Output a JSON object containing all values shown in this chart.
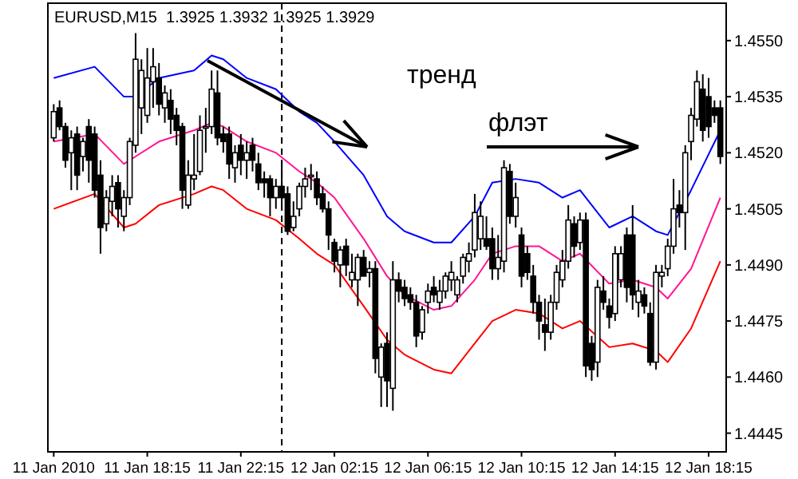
{
  "chart_data": {
    "type": "candlestick",
    "title": "EURUSD,M15  1.3925 1.3932 1.3925 1.3929",
    "annotations": [
      "тренд",
      "флэт"
    ],
    "x": [
      "2010-01-11T14:15",
      "2010-01-11T14:30",
      "2010-01-11T14:45",
      "2010-01-11T15:00",
      "2010-01-11T15:15",
      "2010-01-11T15:30",
      "2010-01-11T15:45",
      "2010-01-11T16:00",
      "2010-01-11T16:15",
      "2010-01-11T16:30",
      "2010-01-11T16:45",
      "2010-01-11T17:00",
      "2010-01-11T17:15",
      "2010-01-11T17:30",
      "2010-01-11T17:45",
      "2010-01-11T18:00",
      "2010-01-11T18:15",
      "2010-01-11T18:30",
      "2010-01-11T18:45",
      "2010-01-11T19:00",
      "2010-01-11T19:15",
      "2010-01-11T19:30",
      "2010-01-11T19:45",
      "2010-01-11T20:00",
      "2010-01-11T20:15",
      "2010-01-11T20:30",
      "2010-01-11T20:45",
      "2010-01-11T21:00",
      "2010-01-11T21:15",
      "2010-01-11T21:30",
      "2010-01-11T21:45",
      "2010-01-11T22:00",
      "2010-01-11T22:15",
      "2010-01-11T22:30",
      "2010-01-11T22:45",
      "2010-01-11T23:00",
      "2010-01-11T23:15",
      "2010-01-11T23:30",
      "2010-01-11T23:45",
      "2010-01-12T00:00",
      "2010-01-12T00:15",
      "2010-01-12T00:30",
      "2010-01-12T00:45",
      "2010-01-12T01:00",
      "2010-01-12T01:15",
      "2010-01-12T01:30",
      "2010-01-12T01:45",
      "2010-01-12T02:00",
      "2010-01-12T02:15",
      "2010-01-12T02:30",
      "2010-01-12T02:45",
      "2010-01-12T03:00",
      "2010-01-12T03:15",
      "2010-01-12T03:30",
      "2010-01-12T03:45",
      "2010-01-12T04:00",
      "2010-01-12T04:15",
      "2010-01-12T04:30",
      "2010-01-12T04:45",
      "2010-01-12T05:00",
      "2010-01-12T05:15",
      "2010-01-12T05:30",
      "2010-01-12T05:45",
      "2010-01-12T06:00",
      "2010-01-12T06:15",
      "2010-01-12T06:30",
      "2010-01-12T06:45",
      "2010-01-12T07:00",
      "2010-01-12T07:15",
      "2010-01-12T07:30",
      "2010-01-12T07:45",
      "2010-01-12T08:00",
      "2010-01-12T08:15",
      "2010-01-12T08:30",
      "2010-01-12T08:45",
      "2010-01-12T09:00",
      "2010-01-12T09:15",
      "2010-01-12T09:30",
      "2010-01-12T09:45",
      "2010-01-12T10:00",
      "2010-01-12T10:15",
      "2010-01-12T10:30",
      "2010-01-12T10:45",
      "2010-01-12T11:00",
      "2010-01-12T11:15",
      "2010-01-12T11:30",
      "2010-01-12T11:45",
      "2010-01-12T12:00",
      "2010-01-12T12:15",
      "2010-01-12T12:30",
      "2010-01-12T12:45",
      "2010-01-12T13:00",
      "2010-01-12T13:15",
      "2010-01-12T13:30",
      "2010-01-12T13:45",
      "2010-01-12T14:00",
      "2010-01-12T14:15",
      "2010-01-12T14:30",
      "2010-01-12T14:45",
      "2010-01-12T15:00",
      "2010-01-12T15:15",
      "2010-01-12T15:30",
      "2010-01-12T15:45",
      "2010-01-12T16:00",
      "2010-01-12T16:15",
      "2010-01-12T16:30",
      "2010-01-12T16:45",
      "2010-01-12T17:00",
      "2010-01-12T17:15",
      "2010-01-12T17:30",
      "2010-01-12T17:45",
      "2010-01-12T18:00",
      "2010-01-12T18:15",
      "2010-01-12T18:30",
      "2010-01-12T18:45"
    ],
    "ohlc": [
      [
        1.4524,
        1.4533,
        1.4523,
        1.4531
      ],
      [
        1.4532,
        1.4534,
        1.4526,
        1.4527
      ],
      [
        1.4527,
        1.4528,
        1.4516,
        1.4518
      ],
      [
        1.452,
        1.4526,
        1.451,
        1.4524
      ],
      [
        1.4525,
        1.4527,
        1.451,
        1.4514
      ],
      [
        1.4519,
        1.4524,
        1.4515,
        1.4523
      ],
      [
        1.4527,
        1.4529,
        1.4512,
        1.4518
      ],
      [
        1.4525,
        1.4527,
        1.4508,
        1.451
      ],
      [
        1.4514,
        1.4518,
        1.4493,
        1.45
      ],
      [
        1.4501,
        1.451,
        1.4499,
        1.4508
      ],
      [
        1.4507,
        1.4514,
        1.4503,
        1.4511
      ],
      [
        1.4512,
        1.4514,
        1.45,
        1.4505
      ],
      [
        1.4503,
        1.451,
        1.4499,
        1.4508
      ],
      [
        1.4508,
        1.4524,
        1.4506,
        1.4523
      ],
      [
        1.4522,
        1.4552,
        1.452,
        1.4545
      ],
      [
        1.4532,
        1.4545,
        1.4525,
        1.4542
      ],
      [
        1.453,
        1.4548,
        1.4528,
        1.454
      ],
      [
        1.4539,
        1.4548,
        1.4532,
        1.4543
      ],
      [
        1.454,
        1.4544,
        1.453,
        1.4533
      ],
      [
        1.4532,
        1.4538,
        1.4528,
        1.4536
      ],
      [
        1.4534,
        1.4537,
        1.4525,
        1.4529
      ],
      [
        1.453,
        1.4532,
        1.4522,
        1.4526
      ],
      [
        1.4527,
        1.4528,
        1.4505,
        1.451
      ],
      [
        1.4506,
        1.4518,
        1.4505,
        1.4514
      ],
      [
        1.4513,
        1.4525,
        1.451,
        1.4514
      ],
      [
        1.4515,
        1.453,
        1.4514,
        1.4526
      ],
      [
        1.4527,
        1.4532,
        1.452,
        1.4527
      ],
      [
        1.4527,
        1.4542,
        1.4525,
        1.4537
      ],
      [
        1.4536,
        1.4542,
        1.4522,
        1.4524
      ],
      [
        1.4525,
        1.4527,
        1.452,
        1.4523
      ],
      [
        1.4525,
        1.4527,
        1.4513,
        1.4517
      ],
      [
        1.4516,
        1.4522,
        1.4512,
        1.452
      ],
      [
        1.4522,
        1.4525,
        1.4514,
        1.4518
      ],
      [
        1.4518,
        1.4523,
        1.4513,
        1.452
      ],
      [
        1.4522,
        1.4524,
        1.4515,
        1.4518
      ],
      [
        1.4517,
        1.452,
        1.451,
        1.4512
      ],
      [
        1.4513,
        1.4515,
        1.4508,
        1.4512
      ],
      [
        1.4513,
        1.4514,
        1.4503,
        1.4508
      ],
      [
        1.4508,
        1.4513,
        1.4505,
        1.4511
      ],
      [
        1.4511,
        1.4518,
        1.4505,
        1.4508
      ],
      [
        1.4509,
        1.4511,
        1.4498,
        1.4499
      ],
      [
        1.45,
        1.4507,
        1.4499,
        1.4503
      ],
      [
        1.4505,
        1.4512,
        1.4503,
        1.4511
      ],
      [
        1.4511,
        1.4516,
        1.4508,
        1.4513
      ],
      [
        1.4514,
        1.4517,
        1.451,
        1.4514
      ],
      [
        1.4513,
        1.4515,
        1.4506,
        1.4508
      ],
      [
        1.4509,
        1.4511,
        1.4504,
        1.4505
      ],
      [
        1.4505,
        1.4507,
        1.4494,
        1.4498
      ],
      [
        1.4496,
        1.4497,
        1.4488,
        1.4491
      ],
      [
        1.449,
        1.4495,
        1.4484,
        1.4494
      ],
      [
        1.4495,
        1.4497,
        1.4487,
        1.449
      ],
      [
        1.4486,
        1.4493,
        1.4484,
        1.4488
      ],
      [
        1.4486,
        1.4493,
        1.4479,
        1.4492
      ],
      [
        1.4492,
        1.4494,
        1.4487,
        1.4487
      ],
      [
        1.4488,
        1.4491,
        1.4484,
        1.4489
      ],
      [
        1.4489,
        1.4491,
        1.4461,
        1.4465
      ],
      [
        1.446,
        1.4469,
        1.4452,
        1.4468
      ],
      [
        1.4469,
        1.4472,
        1.4452,
        1.4459
      ],
      [
        1.4457,
        1.4491,
        1.4451,
        1.4486
      ],
      [
        1.4486,
        1.4488,
        1.448,
        1.4483
      ],
      [
        1.4484,
        1.4486,
        1.4479,
        1.4481
      ],
      [
        1.4482,
        1.4484,
        1.4478,
        1.448
      ],
      [
        1.448,
        1.4482,
        1.4468,
        1.4471
      ],
      [
        1.4472,
        1.4479,
        1.447,
        1.4478
      ],
      [
        1.448,
        1.4485,
        1.4477,
        1.4483
      ],
      [
        1.4484,
        1.4487,
        1.448,
        1.4482
      ],
      [
        1.448,
        1.4486,
        1.4478,
        1.4483
      ],
      [
        1.4483,
        1.4488,
        1.4481,
        1.4487
      ],
      [
        1.4486,
        1.4491,
        1.4483,
        1.4488
      ],
      [
        1.4482,
        1.4487,
        1.448,
        1.4486
      ],
      [
        1.4487,
        1.4493,
        1.4485,
        1.4492
      ],
      [
        1.4491,
        1.4496,
        1.4488,
        1.4493
      ],
      [
        1.4494,
        1.4509,
        1.4492,
        1.4504
      ],
      [
        1.4497,
        1.4507,
        1.4494,
        1.4503
      ],
      [
        1.4497,
        1.4503,
        1.4494,
        1.4495
      ],
      [
        1.4497,
        1.45,
        1.4486,
        1.4489
      ],
      [
        1.4489,
        1.4498,
        1.4486,
        1.4492
      ],
      [
        1.4491,
        1.4518,
        1.4488,
        1.4516
      ],
      [
        1.4515,
        1.4517,
        1.4501,
        1.4503
      ],
      [
        1.4503,
        1.4512,
        1.45,
        1.4508
      ],
      [
        1.4498,
        1.45,
        1.4484,
        1.4487
      ],
      [
        1.4493,
        1.4495,
        1.4486,
        1.4488
      ],
      [
        1.4487,
        1.449,
        1.4477,
        1.448
      ],
      [
        1.448,
        1.4482,
        1.447,
        1.4475
      ],
      [
        1.4474,
        1.4481,
        1.4467,
        1.4472
      ],
      [
        1.4472,
        1.4482,
        1.447,
        1.448
      ],
      [
        1.448,
        1.449,
        1.4478,
        1.4488
      ],
      [
        1.4486,
        1.4494,
        1.4484,
        1.4491
      ],
      [
        1.4491,
        1.4506,
        1.4489,
        1.4502
      ],
      [
        1.4501,
        1.4503,
        1.4492,
        1.4495
      ],
      [
        1.4496,
        1.4504,
        1.4494,
        1.4502
      ],
      [
        1.4502,
        1.4504,
        1.446,
        1.4463
      ],
      [
        1.4469,
        1.4471,
        1.4459,
        1.4462
      ],
      [
        1.4464,
        1.4486,
        1.446,
        1.4484
      ],
      [
        1.4483,
        1.4487,
        1.4478,
        1.448
      ],
      [
        1.4479,
        1.4481,
        1.4473,
        1.4476
      ],
      [
        1.4477,
        1.4495,
        1.4475,
        1.4493
      ],
      [
        1.4486,
        1.4495,
        1.4484,
        1.4493
      ],
      [
        1.4498,
        1.45,
        1.448,
        1.4484
      ],
      [
        1.4498,
        1.4506,
        1.4478,
        1.4482
      ],
      [
        1.448,
        1.4486,
        1.4476,
        1.4483
      ],
      [
        1.4482,
        1.4484,
        1.4477,
        1.4479
      ],
      [
        1.4477,
        1.448,
        1.4463,
        1.4464
      ],
      [
        1.4464,
        1.449,
        1.4462,
        1.4488
      ],
      [
        1.4487,
        1.449,
        1.4484,
        1.4488
      ],
      [
        1.4489,
        1.4497,
        1.4487,
        1.4495
      ],
      [
        1.4495,
        1.4513,
        1.4493,
        1.4505
      ],
      [
        1.4506,
        1.451,
        1.45,
        1.4504
      ],
      [
        1.4504,
        1.4522,
        1.4494,
        1.452
      ],
      [
        1.4523,
        1.4532,
        1.4518,
        1.453
      ],
      [
        1.4529,
        1.4542,
        1.4527,
        1.4539
      ],
      [
        1.4537,
        1.4541,
        1.4523,
        1.4526
      ],
      [
        1.4535,
        1.454,
        1.4524,
        1.4527
      ],
      [
        1.4532,
        1.4534,
        1.4528,
        1.453
      ],
      [
        1.4532,
        1.4534,
        1.4517,
        1.4519
      ]
    ],
    "series": [
      {
        "type": "line",
        "color": "#0000ff",
        "x": [
          "2010-01-11T14:15",
          "2010-01-11T16:00",
          "2010-01-11T17:15",
          "2010-01-11T17:45",
          "2010-01-11T18:45",
          "2010-01-11T20:15",
          "2010-01-11T21:00",
          "2010-01-11T21:30",
          "2010-01-11T22:30",
          "2010-01-11T23:45",
          "2010-01-12T00:45",
          "2010-01-12T01:30",
          "2010-01-12T02:15",
          "2010-01-12T03:30",
          "2010-01-12T04:30",
          "2010-01-12T05:15",
          "2010-01-12T06:30",
          "2010-01-12T07:15",
          "2010-01-12T08:15",
          "2010-01-12T09:00",
          "2010-01-12T10:00",
          "2010-01-12T11:00",
          "2010-01-12T12:00",
          "2010-01-12T12:45",
          "2010-01-12T14:00",
          "2010-01-12T15:00",
          "2010-01-12T16:00",
          "2010-01-12T16:30",
          "2010-01-12T17:30",
          "2010-01-12T18:45"
        ],
        "values": [
          1.454,
          1.4543,
          1.4535,
          1.4535,
          1.454,
          1.4542,
          1.4546,
          1.4545,
          1.454,
          1.4537,
          1.4531,
          1.4528,
          1.4523,
          1.4514,
          1.4503,
          1.4499,
          1.4496,
          1.4496,
          1.4503,
          1.4512,
          1.4513,
          1.4512,
          1.4508,
          1.451,
          1.45,
          1.4503,
          1.4499,
          1.4498,
          1.451,
          1.4526
        ]
      },
      {
        "type": "line",
        "color": "#ff1493",
        "x": [
          "2010-01-11T14:15",
          "2010-01-11T16:00",
          "2010-01-11T17:15",
          "2010-01-11T17:45",
          "2010-01-11T18:45",
          "2010-01-11T20:15",
          "2010-01-11T21:00",
          "2010-01-11T21:30",
          "2010-01-11T22:30",
          "2010-01-11T23:45",
          "2010-01-12T00:45",
          "2010-01-12T01:30",
          "2010-01-12T02:15",
          "2010-01-12T03:30",
          "2010-01-12T04:30",
          "2010-01-12T05:15",
          "2010-01-12T06:30",
          "2010-01-12T07:15",
          "2010-01-12T08:15",
          "2010-01-12T09:00",
          "2010-01-12T10:00",
          "2010-01-12T11:00",
          "2010-01-12T12:00",
          "2010-01-12T12:45",
          "2010-01-12T14:00",
          "2010-01-12T15:00",
          "2010-01-12T16:00",
          "2010-01-12T16:30",
          "2010-01-12T17:30",
          "2010-01-12T18:45"
        ],
        "values": [
          1.4523,
          1.4525,
          1.4517,
          1.4519,
          1.4523,
          1.4526,
          1.4528,
          1.4527,
          1.4523,
          1.452,
          1.4515,
          1.4512,
          1.4508,
          1.4497,
          1.4487,
          1.4482,
          1.4478,
          1.4479,
          1.4486,
          1.4493,
          1.4495,
          1.4495,
          1.4491,
          1.4493,
          1.4485,
          1.4486,
          1.4484,
          1.4481,
          1.4489,
          1.4508
        ]
      },
      {
        "type": "line",
        "color": "#ff0000",
        "x": [
          "2010-01-11T14:15",
          "2010-01-11T16:00",
          "2010-01-11T17:15",
          "2010-01-11T17:45",
          "2010-01-11T18:45",
          "2010-01-11T20:15",
          "2010-01-11T21:00",
          "2010-01-11T21:30",
          "2010-01-11T22:30",
          "2010-01-11T23:45",
          "2010-01-12T00:45",
          "2010-01-12T01:30",
          "2010-01-12T02:15",
          "2010-01-12T03:30",
          "2010-01-12T04:30",
          "2010-01-12T05:15",
          "2010-01-12T06:30",
          "2010-01-12T07:15",
          "2010-01-12T08:15",
          "2010-01-12T09:00",
          "2010-01-12T10:00",
          "2010-01-12T11:00",
          "2010-01-12T12:00",
          "2010-01-12T12:45",
          "2010-01-12T14:00",
          "2010-01-12T15:00",
          "2010-01-12T16:00",
          "2010-01-12T16:30",
          "2010-01-12T17:30",
          "2010-01-12T18:45"
        ],
        "values": [
          1.4505,
          1.4509,
          1.45,
          1.4501,
          1.4506,
          1.4509,
          1.4511,
          1.451,
          1.4505,
          1.4502,
          1.4497,
          1.4493,
          1.449,
          1.4479,
          1.447,
          1.4466,
          1.4462,
          1.4461,
          1.4469,
          1.4475,
          1.4478,
          1.4477,
          1.4473,
          1.4475,
          1.4468,
          1.4469,
          1.4467,
          1.4464,
          1.4473,
          1.4491
        ]
      }
    ],
    "xlim": [
      "2010-01-11T14:00",
      "2010-01-12T19:00"
    ],
    "xticks": [
      {
        "value": "2010-01-11T14:15",
        "label": "11 Jan 2010"
      },
      {
        "value": "2010-01-11T18:15",
        "label": "11 Jan 18:15"
      },
      {
        "value": "2010-01-11T22:15",
        "label": "11 Jan 22:15"
      },
      {
        "value": "2010-01-12T02:15",
        "label": "12 Jan 02:15"
      },
      {
        "value": "2010-01-12T06:15",
        "label": "12 Jan 06:15"
      },
      {
        "value": "2010-01-12T10:15",
        "label": "12 Jan 10:15"
      },
      {
        "value": "2010-01-12T14:15",
        "label": "12 Jan 14:15"
      },
      {
        "value": "2010-01-12T18:15",
        "label": "12 Jan 18:15"
      }
    ],
    "ylim": [
      1.444,
      1.456
    ],
    "yticks": [
      {
        "value": 1.4445,
        "label": "1.4445"
      },
      {
        "value": 1.446,
        "label": "1.4460"
      },
      {
        "value": 1.4475,
        "label": "1.4475"
      },
      {
        "value": 1.449,
        "label": "1.4490"
      },
      {
        "value": 1.4505,
        "label": "1.4505"
      },
      {
        "value": 1.452,
        "label": "1.4520"
      },
      {
        "value": 1.4535,
        "label": "1.4535"
      },
      {
        "value": 1.455,
        "label": "1.4550"
      }
    ],
    "ref_lines": [
      {
        "axis": "x",
        "value": "2010-01-12T00:00",
        "color": "#000000",
        "line_style": "dashed"
      }
    ]
  }
}
